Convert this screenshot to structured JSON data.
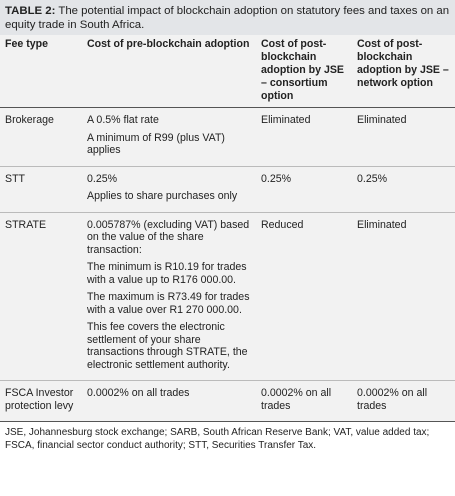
{
  "caption": {
    "label": "TABLE 2:",
    "text": "The potential impact of blockchain adoption on statutory fees and taxes on an equity trade in South Africa."
  },
  "table": {
    "header": [
      "Fee type",
      "Cost of pre-blockchain adoption",
      "Cost of post-blockchain adoption by JSE – consortium option",
      "Cost of post-blockchain adoption by JSE – network option"
    ],
    "rows": [
      [
        [
          "Brokerage"
        ],
        [
          "A 0.5% flat rate",
          "A minimum of R99 (plus VAT) applies"
        ],
        [
          "Eliminated"
        ],
        [
          "Eliminated"
        ]
      ],
      [
        [
          "STT"
        ],
        [
          "0.25%",
          "Applies to share purchases only"
        ],
        [
          "0.25%"
        ],
        [
          "0.25%"
        ]
      ],
      [
        [
          "STRATE"
        ],
        [
          "0.005787% (excluding VAT) based on the value of the share transaction:",
          "The minimum is R10.19 for trades with a value up to R176 000.00.",
          "The maximum is R73.49 for trades with a value over R1 270 000.00.",
          "This fee covers the electronic settlement of your share transactions through STRATE, the electronic settlement authority."
        ],
        [
          "Reduced"
        ],
        [
          "Eliminated"
        ]
      ],
      [
        [
          "FSCA Investor protection levy"
        ],
        [
          "0.0002% on all trades"
        ],
        [
          "0.0002% on all trades"
        ],
        [
          "0.0002% on all trades"
        ]
      ]
    ]
  },
  "footnote": "JSE, Johannesburg stock exchange; SARB, South African Reserve Bank; VAT, value added tax; FSCA, financial sector conduct authority; STT, Securities Transfer Tax."
}
